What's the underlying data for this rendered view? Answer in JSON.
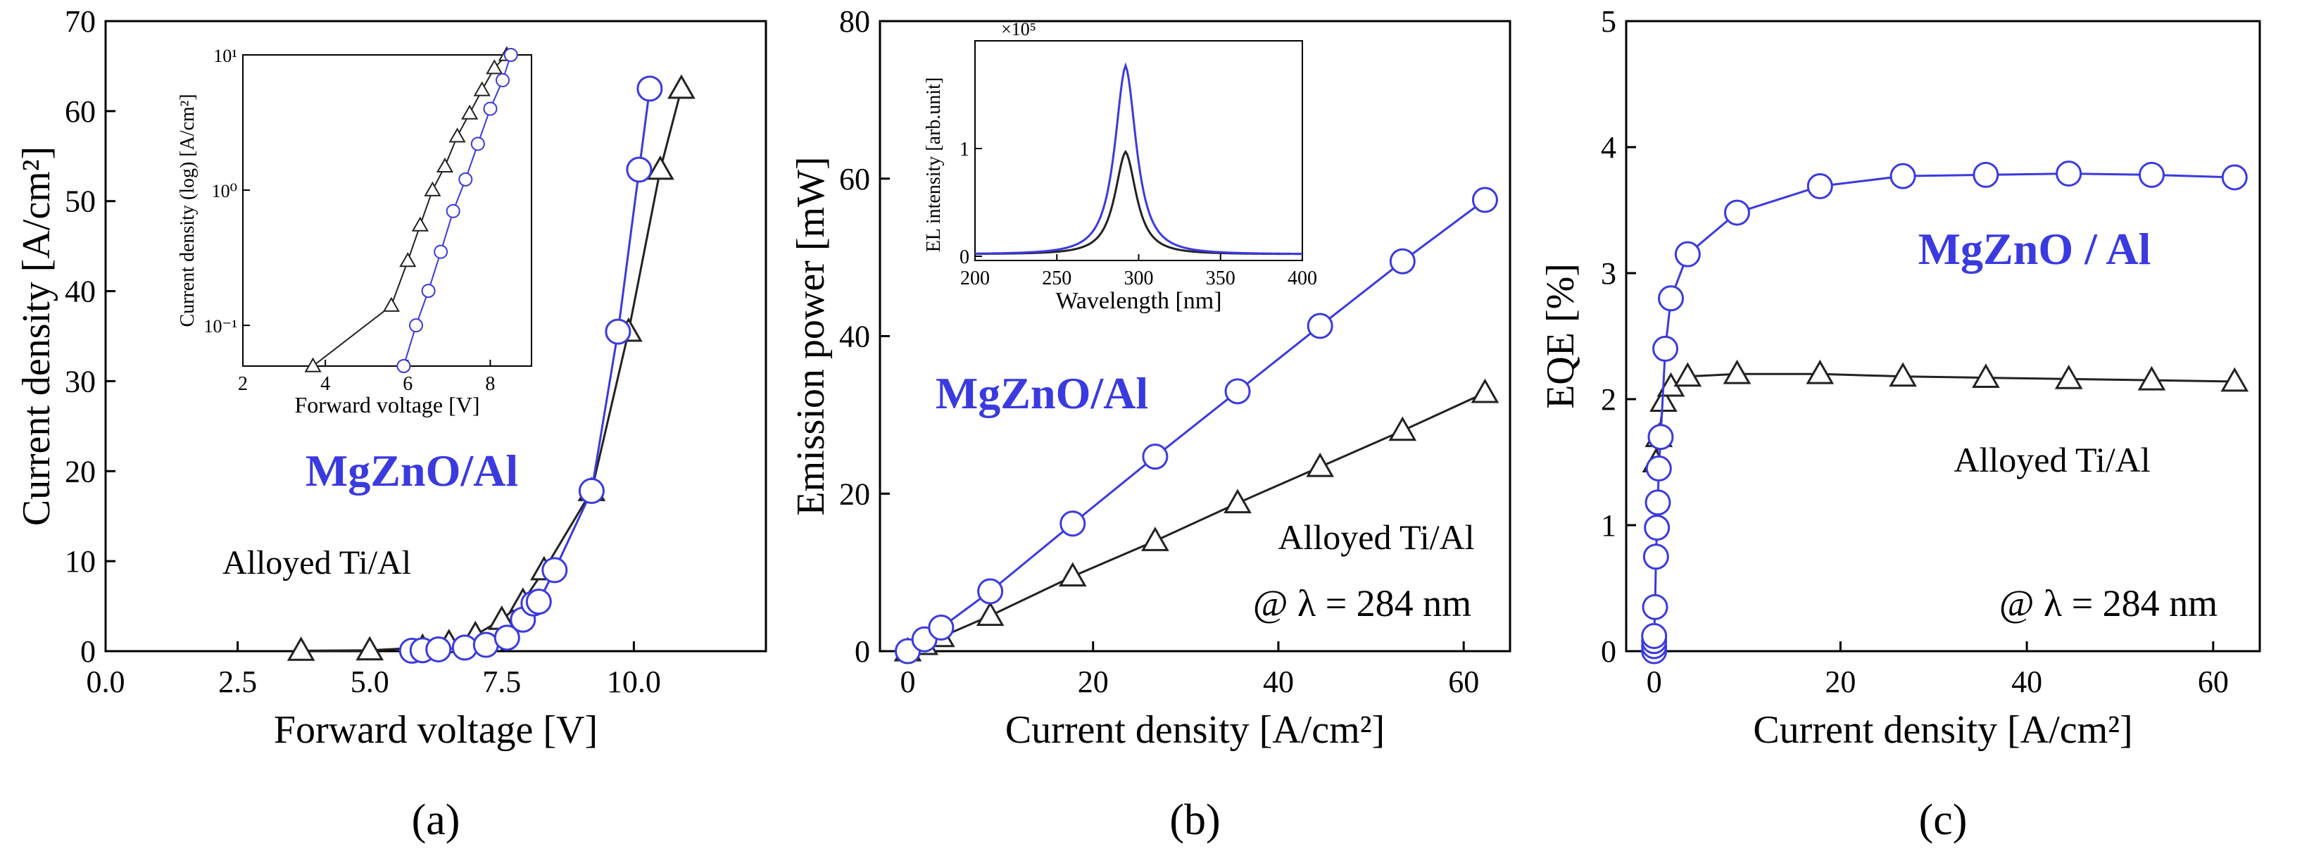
{
  "colors": {
    "mgzno": "#3a3ae0",
    "alloyed": "#222222",
    "axis": "#000000"
  },
  "chart_data": [
    {
      "type": "line",
      "id": "a",
      "panel_label": "(a)",
      "xlabel": "Forward voltage [V]",
      "ylabel": "Current density [A/cm²]",
      "xlim": [
        0,
        12.5
      ],
      "ylim": [
        0,
        70
      ],
      "xticks": [
        "0.0",
        "2.5",
        "5.0",
        "7.5",
        "10.0"
      ],
      "yticks": [
        "0",
        "10",
        "20",
        "30",
        "40",
        "50",
        "60",
        "70"
      ],
      "annotations": [
        "MgZnO/Al",
        "Alloyed  Ti/Al"
      ],
      "series": [
        {
          "name": "MgZnO/Al",
          "marker": "circle",
          "x": [
            5.8,
            6.0,
            6.3,
            6.8,
            7.2,
            7.6,
            7.9,
            8.1,
            8.2,
            8.5,
            9.2,
            9.7,
            10.1,
            10.3
          ],
          "y": [
            0.05,
            0.1,
            0.2,
            0.4,
            0.7,
            1.5,
            3.5,
            5.3,
            5.5,
            9,
            17.8,
            35.5,
            53.5,
            62.5
          ]
        },
        {
          "name": "Alloyed Ti/Al",
          "marker": "triangle",
          "x": [
            3.7,
            5.0,
            6.0,
            6.5,
            7.0,
            7.5,
            7.9,
            8.3,
            9.2,
            9.9,
            10.5,
            10.9
          ],
          "y": [
            0.05,
            0.1,
            0.4,
            0.9,
            1.8,
            3.5,
            5.5,
            9,
            17.8,
            35.5,
            53.5,
            62.5
          ]
        }
      ],
      "inset": {
        "type": "line",
        "xlabel": "Forward voltage [V]",
        "ylabel": "Current density (log) [A/cm²]",
        "xlim": [
          2,
          9
        ],
        "ylim_log": [
          0.05,
          10
        ],
        "xticks": [
          "2",
          "4",
          "6",
          "8"
        ],
        "yticks": [
          "10⁻¹",
          "10⁰",
          "10¹"
        ],
        "series": [
          {
            "name": "MgZnO/Al",
            "marker": "circle",
            "x": [
              5.9,
              6.2,
              6.5,
              6.8,
              7.1,
              7.4,
              7.7,
              8.0,
              8.3,
              8.5
            ],
            "y": [
              0.05,
              0.1,
              0.18,
              0.35,
              0.7,
              1.2,
              2.2,
              4,
              6.5,
              10
            ]
          },
          {
            "name": "Alloyed Ti/Al",
            "marker": "triangle",
            "x": [
              3.7,
              5.6,
              6.0,
              6.3,
              6.6,
              6.9,
              7.2,
              7.5,
              7.8,
              8.1,
              8.4
            ],
            "y": [
              0.05,
              0.14,
              0.3,
              0.55,
              1.0,
              1.5,
              2.5,
              3.7,
              5.5,
              8,
              10
            ]
          }
        ]
      }
    },
    {
      "type": "line",
      "id": "b",
      "panel_label": "(b)",
      "xlabel": "Current density [A/cm²]",
      "ylabel": "Emission power [mW]",
      "xlim": [
        -3,
        65
      ],
      "ylim": [
        0,
        80
      ],
      "xticks": [
        "0",
        "20",
        "40",
        "60"
      ],
      "yticks": [
        "0",
        "20",
        "40",
        "60",
        "80"
      ],
      "annotations": [
        "MgZnO/Al",
        "Alloyed  Ti/Al",
        "@ λ = 284 nm"
      ],
      "series": [
        {
          "name": "MgZnO/Al",
          "marker": "circle",
          "x": [
            0,
            1.8,
            3.6,
            8.9,
            17.8,
            26.7,
            35.6,
            44.5,
            53.4,
            62.3
          ],
          "y": [
            0,
            1.5,
            3,
            7.6,
            16.2,
            24.7,
            33,
            41.3,
            49.5,
            57.3
          ]
        },
        {
          "name": "Alloyed Ti/Al",
          "marker": "triangle",
          "x": [
            0,
            1.8,
            3.6,
            8.9,
            17.8,
            26.7,
            35.6,
            44.5,
            53.4,
            62.3
          ],
          "y": [
            0,
            0.8,
            1.8,
            4.5,
            9.5,
            14,
            18.8,
            23.4,
            28,
            32.8
          ]
        }
      ],
      "inset": {
        "type": "line",
        "title": "×10⁵",
        "xlabel": "Wavelength [nm]",
        "ylabel": "EL intensity [arb.unit]",
        "xlim": [
          200,
          400
        ],
        "ylim": [
          0,
          2
        ],
        "xticks": [
          "200",
          "250",
          "300",
          "350",
          "400"
        ],
        "yticks": [
          "0",
          "1"
        ],
        "series": [
          {
            "name": "MgZnO/Al",
            "peak_nm": 292,
            "peak": 1.75,
            "width_nm": 11
          },
          {
            "name": "Alloyed Ti/Al",
            "peak_nm": 292,
            "peak": 0.95,
            "width_nm": 11
          }
        ]
      }
    },
    {
      "type": "line",
      "id": "c",
      "panel_label": "(c)",
      "xlabel": "Current density [A/cm²]",
      "ylabel": "EQE [%]",
      "xlim": [
        -3,
        65
      ],
      "ylim": [
        0,
        5
      ],
      "xticks": [
        "0",
        "20",
        "40",
        "60"
      ],
      "yticks": [
        "0",
        "1",
        "2",
        "3",
        "4",
        "5"
      ],
      "annotations": [
        "MgZnO / Al",
        "Alloyed  Ti/Al",
        "@ λ = 284 nm"
      ],
      "series": [
        {
          "name": "MgZnO/Al",
          "marker": "circle",
          "x": [
            0,
            0,
            0,
            0,
            0.1,
            0.2,
            0.3,
            0.4,
            0.5,
            0.7,
            1.2,
            1.8,
            3.6,
            8.9,
            17.8,
            26.7,
            35.6,
            44.5,
            53.4,
            62.3
          ],
          "y": [
            0,
            0.04,
            0.08,
            0.12,
            0.35,
            0.75,
            0.98,
            1.18,
            1.45,
            1.7,
            2.4,
            2.8,
            3.15,
            3.48,
            3.69,
            3.77,
            3.78,
            3.79,
            3.78,
            3.76
          ]
        },
        {
          "name": "Alloyed Ti/Al",
          "marker": "triangle",
          "x": [
            0.2,
            0.5,
            1.0,
            1.8,
            3.6,
            8.9,
            17.8,
            26.7,
            35.6,
            44.5,
            53.4,
            62.3
          ],
          "y": [
            1.5,
            1.7,
            1.98,
            2.1,
            2.18,
            2.2,
            2.2,
            2.18,
            2.17,
            2.16,
            2.15,
            2.14
          ]
        }
      ]
    }
  ]
}
